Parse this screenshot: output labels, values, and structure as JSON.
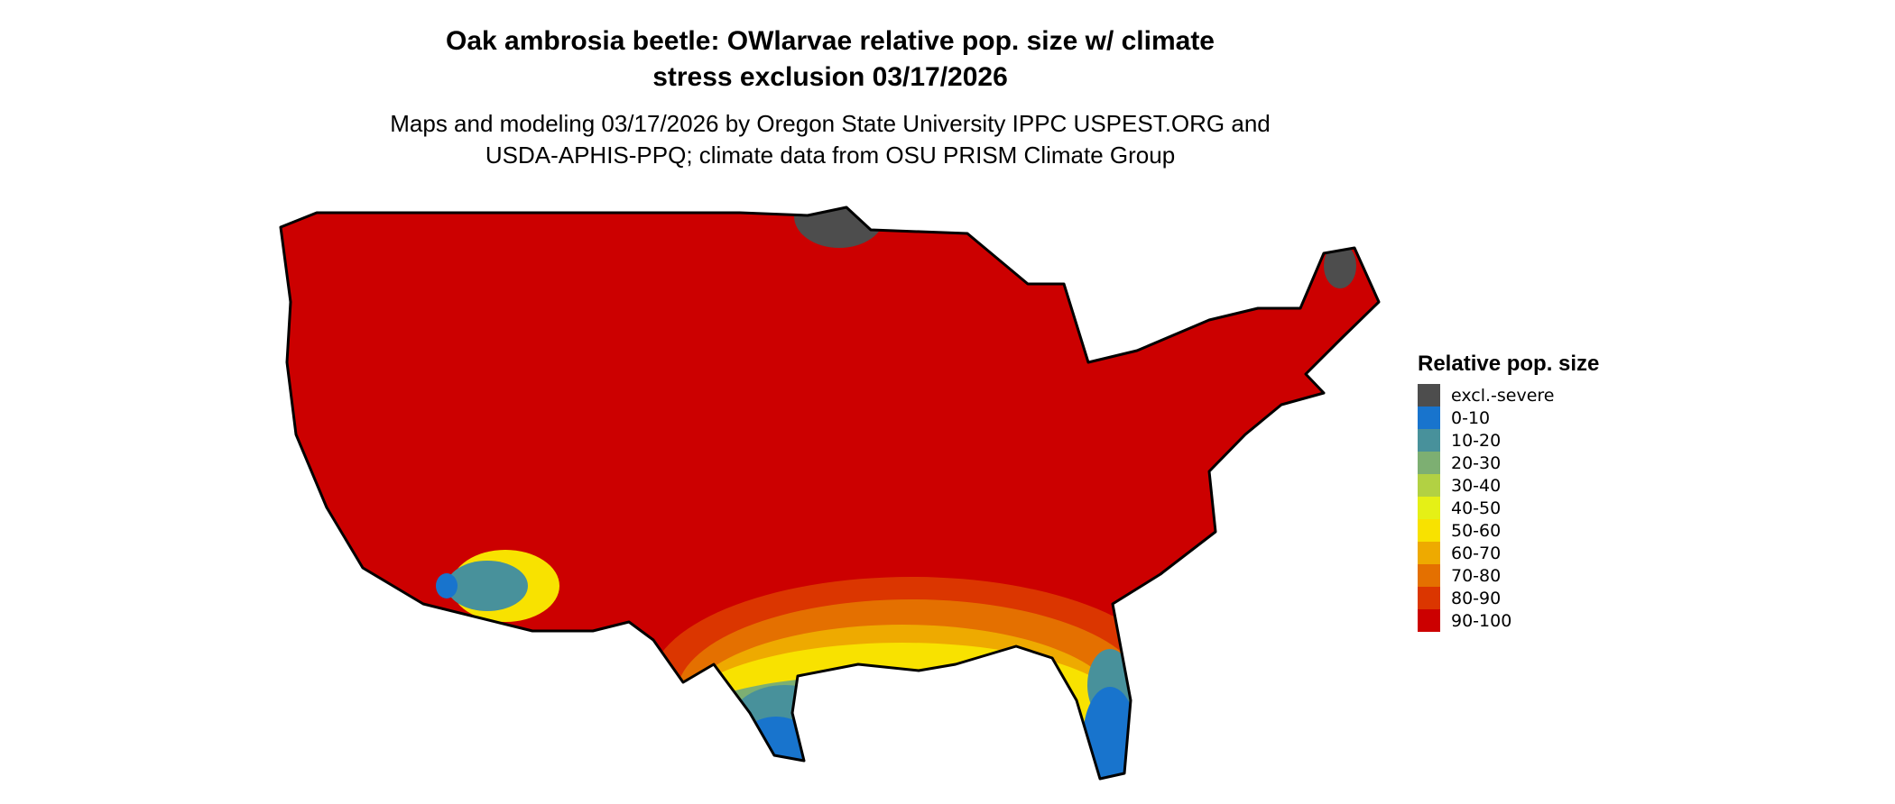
{
  "title": {
    "line1": "Oak ambrosia beetle: OWlarvae relative pop. size w/ climate",
    "line2": "stress exclusion 03/17/2026"
  },
  "subtitle": {
    "line1": "Maps and modeling 03/17/2026 by Oregon State University IPPC USPEST.ORG and",
    "line2": "USDA-APHIS-PPQ; climate data from OSU PRISM Climate Group"
  },
  "map": {
    "region": "Contiguous United States",
    "dominant_class": "90-100",
    "outline_color": "#000000"
  },
  "legend": {
    "title": "Relative pop. size",
    "items": [
      {
        "label": "excl.-severe",
        "color": "#4d4d4d"
      },
      {
        "label": "0-10",
        "color": "#1874cd"
      },
      {
        "label": "10-20",
        "color": "#48919b"
      },
      {
        "label": "20-30",
        "color": "#7daf72"
      },
      {
        "label": "30-40",
        "color": "#b2d143"
      },
      {
        "label": "40-50",
        "color": "#e5f016"
      },
      {
        "label": "50-60",
        "color": "#f8e200"
      },
      {
        "label": "60-70",
        "color": "#eeaa00"
      },
      {
        "label": "70-80",
        "color": "#e47000"
      },
      {
        "label": "80-90",
        "color": "#db3600"
      },
      {
        "label": "90-100",
        "color": "#cc0000"
      }
    ]
  }
}
